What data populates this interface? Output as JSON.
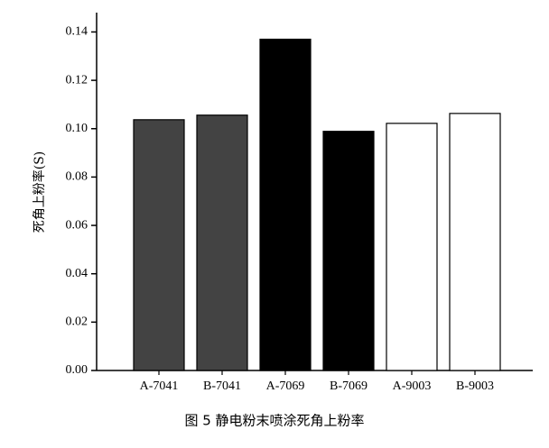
{
  "chart_data": {
    "type": "bar",
    "ylabel": "死角上粉率(S)",
    "caption": "图 5 静电粉末喷涂死角上粉率",
    "categories": [
      "A-7041",
      "B-7041",
      "A-7069",
      "B-7069",
      "A-9003",
      "B-9003"
    ],
    "values": [
      0.1037,
      0.1056,
      0.137,
      0.0989,
      0.1022,
      0.1063
    ],
    "colors": [
      "#434343",
      "#434343",
      "#000000",
      "#000000",
      "#ffffff",
      "#ffffff"
    ],
    "ylim": [
      0,
      0.148
    ],
    "yticks": [
      {
        "value": 0,
        "label": "0.00"
      },
      0.02,
      0.04,
      0.06,
      0.08,
      {
        "value": 0.1,
        "label": "0.10"
      },
      0.12,
      0.14
    ]
  }
}
